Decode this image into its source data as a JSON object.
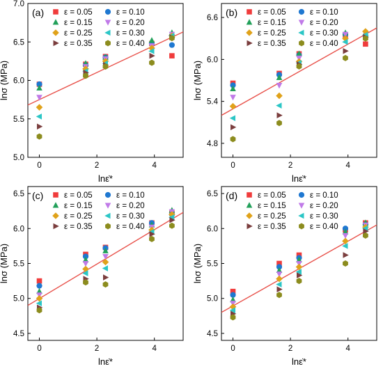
{
  "colors": {
    "0.05": "#f03c3c",
    "0.10": "#1f78d1",
    "0.15": "#22a05a",
    "0.20": "#c07ae8",
    "0.25": "#e0a21a",
    "0.30": "#2bc6c6",
    "0.35": "#7b3e3e",
    "0.40": "#8c8c1e",
    "fit_line": "#e8514a"
  },
  "markers": {
    "0.05": "square",
    "0.10": "circle",
    "0.15": "triangle-up",
    "0.20": "triangle-down",
    "0.25": "diamond",
    "0.30": "triangle-left",
    "0.35": "triangle-right",
    "0.40": "hexagon"
  },
  "chart_data": [
    {
      "type": "scatter",
      "panel_label": "(a)",
      "xlabel": "lnε̇*",
      "ylabel": "lnσ (MPa)",
      "xlim": [
        -0.4,
        5.0
      ],
      "ylim": [
        5.0,
        7.0
      ],
      "xticks": [
        "0",
        "2",
        "4"
      ],
      "xtick_values": [
        0,
        2,
        4
      ],
      "yticks": [
        "5.0",
        "5.5",
        "6.0",
        "6.5",
        "7.0"
      ],
      "ytick_values": [
        5.0,
        5.5,
        6.0,
        6.5,
        7.0
      ],
      "x": [
        0,
        1.61,
        2.3,
        3.91,
        4.61
      ],
      "fit_line": {
        "x": [
          -0.4,
          5.0
        ],
        "y": [
          5.68,
          6.63
        ]
      },
      "series": [
        {
          "name": "ε = 0.05",
          "key": "0.05",
          "values": [
            5.95,
            6.21,
            6.31,
            6.48,
            6.32
          ]
        },
        {
          "name": "ε = 0.10",
          "key": "0.10",
          "values": [
            5.95,
            6.2,
            6.3,
            6.48,
            6.46
          ]
        },
        {
          "name": "ε = 0.15",
          "key": "0.15",
          "values": [
            5.9,
            6.22,
            6.3,
            6.52,
            6.62
          ]
        },
        {
          "name": "ε = 0.20",
          "key": "0.20",
          "values": [
            5.78,
            6.18,
            6.28,
            6.45,
            6.6
          ]
        },
        {
          "name": "ε = 0.25",
          "key": "0.25",
          "values": [
            5.65,
            6.15,
            6.25,
            6.42,
            6.58
          ]
        },
        {
          "name": "ε = 0.30",
          "key": "0.30",
          "values": [
            5.53,
            6.12,
            6.22,
            6.38,
            6.58
          ]
        },
        {
          "name": "ε = 0.35",
          "key": "0.35",
          "values": [
            5.4,
            6.1,
            6.2,
            6.32,
            6.56
          ]
        },
        {
          "name": "ε = 0.40",
          "key": "0.40",
          "values": [
            5.27,
            6.06,
            6.18,
            6.23,
            6.55
          ]
        }
      ]
    },
    {
      "type": "scatter",
      "panel_label": "(b)",
      "xlabel": "lnε̇*",
      "ylabel": "lnσ (MPa)",
      "xlim": [
        -0.4,
        5.0
      ],
      "ylim": [
        4.6,
        6.8
      ],
      "xticks": [
        "0",
        "2",
        "4"
      ],
      "xtick_values": [
        0,
        2,
        4
      ],
      "yticks": [
        "4.8",
        "5.4",
        "6.0",
        "6.6"
      ],
      "ytick_values": [
        4.8,
        5.4,
        6.0,
        6.6
      ],
      "x": [
        0,
        1.61,
        2.3,
        3.91,
        4.61
      ],
      "fit_line": {
        "x": [
          -0.4,
          5.0
        ],
        "y": [
          5.2,
          6.45
        ]
      },
      "series": [
        {
          "name": "ε = 0.05",
          "key": "0.05",
          "values": [
            5.66,
            5.8,
            6.08,
            6.35,
            6.22
          ]
        },
        {
          "name": "ε = 0.10",
          "key": "0.10",
          "values": [
            5.63,
            5.78,
            6.06,
            6.36,
            6.33
          ]
        },
        {
          "name": "ε = 0.15",
          "key": "0.15",
          "values": [
            5.58,
            5.74,
            6.08,
            6.38,
            6.38
          ]
        },
        {
          "name": "ε = 0.20",
          "key": "0.20",
          "values": [
            5.46,
            5.63,
            6.02,
            6.36,
            6.37
          ]
        },
        {
          "name": "ε = 0.25",
          "key": "0.25",
          "values": [
            5.33,
            5.48,
            5.97,
            6.3,
            6.4
          ]
        },
        {
          "name": "ε = 0.30",
          "key": "0.30",
          "values": [
            5.16,
            5.34,
            5.95,
            6.25,
            6.35
          ]
        },
        {
          "name": "ε = 0.35",
          "key": "0.35",
          "values": [
            5.03,
            5.2,
            5.93,
            6.12,
            6.32
          ]
        },
        {
          "name": "ε = 0.40",
          "key": "0.40",
          "values": [
            4.86,
            5.09,
            5.9,
            6.02,
            6.3
          ]
        }
      ]
    },
    {
      "type": "scatter",
      "panel_label": "(c)",
      "xlabel": "lnε̇*",
      "ylabel": "lnσ (MPa)",
      "xlim": [
        -0.4,
        5.0
      ],
      "ylim": [
        4.4,
        6.6
      ],
      "xticks": [
        "0",
        "2",
        "4"
      ],
      "xtick_values": [
        0,
        2,
        4
      ],
      "yticks": [
        "4.5",
        "5.0",
        "5.5",
        "6.0",
        "6.5"
      ],
      "ytick_values": [
        4.5,
        5.0,
        5.5,
        6.0,
        6.5
      ],
      "x": [
        0,
        1.61,
        2.3,
        3.91,
        4.61
      ],
      "fit_line": {
        "x": [
          -0.4,
          5.0
        ],
        "y": [
          4.9,
          6.23
        ]
      },
      "series": [
        {
          "name": "ε = 0.05",
          "key": "0.05",
          "values": [
            5.25,
            5.63,
            5.73,
            6.08,
            6.22
          ]
        },
        {
          "name": "ε = 0.10",
          "key": "0.10",
          "values": [
            5.18,
            5.6,
            5.72,
            6.08,
            6.2
          ]
        },
        {
          "name": "ε = 0.15",
          "key": "0.15",
          "values": [
            5.1,
            5.55,
            5.68,
            6.05,
            6.26
          ]
        },
        {
          "name": "ε = 0.20",
          "key": "0.20",
          "values": [
            5.05,
            5.5,
            5.6,
            6.02,
            6.24
          ]
        },
        {
          "name": "ε = 0.25",
          "key": "0.25",
          "values": [
            5.0,
            5.42,
            5.52,
            5.98,
            6.2
          ]
        },
        {
          "name": "ε = 0.30",
          "key": "0.30",
          "values": [
            4.93,
            5.36,
            5.43,
            5.95,
            6.16
          ]
        },
        {
          "name": "ε = 0.35",
          "key": "0.35",
          "values": [
            4.87,
            5.28,
            5.3,
            5.92,
            6.12
          ]
        },
        {
          "name": "ε = 0.40",
          "key": "0.40",
          "values": [
            4.83,
            5.23,
            5.2,
            5.85,
            6.04
          ]
        }
      ]
    },
    {
      "type": "scatter",
      "panel_label": "(d)",
      "xlabel": "lnε̇*",
      "ylabel": "lnσ (MPa)",
      "xlim": [
        -0.4,
        5.0
      ],
      "ylim": [
        4.4,
        6.6
      ],
      "xticks": [
        "0",
        "2",
        "4"
      ],
      "xtick_values": [
        0,
        2,
        4
      ],
      "yticks": [
        "4.5",
        "5.0",
        "5.5",
        "6.0",
        "6.5"
      ],
      "ytick_values": [
        4.5,
        5.0,
        5.5,
        6.0,
        6.5
      ],
      "x": [
        0,
        1.61,
        2.3,
        3.91,
        4.61
      ],
      "fit_line": {
        "x": [
          -0.4,
          5.0
        ],
        "y": [
          4.8,
          6.05
        ]
      },
      "series": [
        {
          "name": "ε = 0.05",
          "key": "0.05",
          "values": [
            5.1,
            5.5,
            5.62,
            5.98,
            6.08
          ]
        },
        {
          "name": "ε = 0.10",
          "key": "0.10",
          "values": [
            5.05,
            5.45,
            5.58,
            6.0,
            6.06
          ]
        },
        {
          "name": "ε = 0.15",
          "key": "0.15",
          "values": [
            4.98,
            5.4,
            5.55,
            5.95,
            6.08
          ]
        },
        {
          "name": "ε = 0.20",
          "key": "0.20",
          "values": [
            4.93,
            5.35,
            5.5,
            5.9,
            6.05
          ]
        },
        {
          "name": "ε = 0.25",
          "key": "0.25",
          "values": [
            4.88,
            5.28,
            5.45,
            5.82,
            6.02
          ]
        },
        {
          "name": "ε = 0.30",
          "key": "0.30",
          "values": [
            4.83,
            5.2,
            5.38,
            5.75,
            6.0
          ]
        },
        {
          "name": "ε = 0.35",
          "key": "0.35",
          "values": [
            4.78,
            5.13,
            5.33,
            5.62,
            5.96
          ]
        },
        {
          "name": "ε = 0.40",
          "key": "0.40",
          "values": [
            4.73,
            5.05,
            5.25,
            5.5,
            5.9
          ]
        }
      ]
    }
  ]
}
